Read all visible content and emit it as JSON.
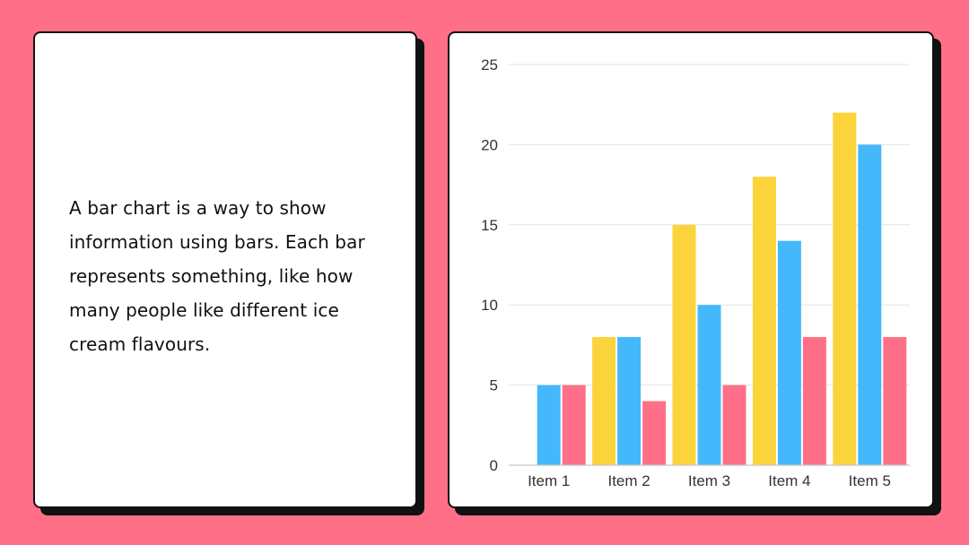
{
  "text_card": {
    "paragraph": "A bar chart is a way to show information using bars. Each bar represents something, like how many people like different ice cream flavours."
  },
  "colors": {
    "background": "#ff7088",
    "card": "#ffffff",
    "outline": "#111111",
    "gridline": "#e3e3e3",
    "axis": "#c8c8c8"
  },
  "chart_data": {
    "type": "bar",
    "categories": [
      "Item 1",
      "Item 2",
      "Item 3",
      "Item 4",
      "Item 5"
    ],
    "series": [
      {
        "values": [
          0,
          8,
          15,
          18,
          22
        ],
        "color": "#fbd43c"
      },
      {
        "values": [
          5,
          8,
          10,
          14,
          20
        ],
        "color": "#45b8fb"
      },
      {
        "values": [
          5,
          4,
          5,
          8,
          8
        ],
        "color": "#ff7088"
      }
    ],
    "yticks": [
      0,
      5,
      10,
      15,
      20,
      25
    ],
    "ylim": [
      0,
      25
    ],
    "grid": true,
    "legend": "none",
    "title": "",
    "xlabel": "",
    "ylabel": ""
  }
}
